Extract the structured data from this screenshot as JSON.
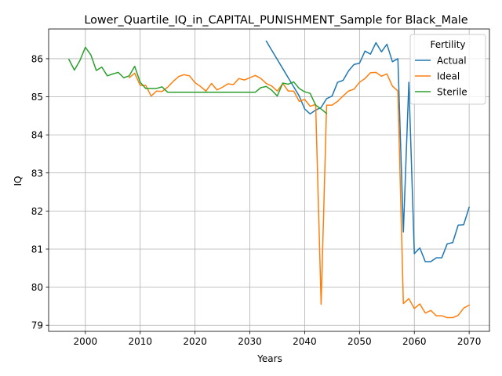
{
  "chart_data": {
    "type": "line",
    "title": "Lower_Quartile_IQ_in_CAPITAL_PUNISHMENT_Sample for Black_Male",
    "xlabel": "Years",
    "ylabel": "IQ",
    "xlim": [
      1993.3,
      2073.7
    ],
    "ylim": [
      78.84,
      86.78
    ],
    "xticks": [
      2000,
      2010,
      2020,
      2030,
      2040,
      2050,
      2060,
      2070
    ],
    "yticks": [
      79,
      80,
      81,
      82,
      83,
      84,
      85,
      86
    ],
    "grid": true,
    "legend": {
      "title": "Fertility",
      "placement": "top-right"
    },
    "series": [
      {
        "name": "Actual",
        "color": "#1f77b4",
        "x": [
          2033,
          2034,
          2035,
          2036,
          2037,
          2038,
          2039,
          2040,
          2041,
          2042,
          2043,
          2044,
          2045,
          2046,
          2047,
          2048,
          2049,
          2050,
          2051,
          2052,
          2053,
          2054,
          2055,
          2056,
          2057,
          2058,
          2059,
          2060,
          2061,
          2062,
          2063,
          2064,
          2065,
          2066,
          2067,
          2068,
          2069,
          2070
        ],
        "y": [
          86.46,
          86.22,
          85.98,
          85.74,
          85.5,
          85.26,
          85.02,
          84.68,
          84.55,
          84.65,
          84.72,
          84.95,
          85.02,
          85.38,
          85.43,
          85.68,
          85.85,
          85.88,
          86.2,
          86.12,
          86.42,
          86.18,
          86.38,
          85.92,
          86.0,
          81.45,
          85.38,
          80.88,
          81.03,
          80.67,
          80.67,
          80.77,
          80.77,
          81.14,
          81.17,
          81.63,
          81.64,
          82.1
        ]
      },
      {
        "name": "Ideal",
        "color": "#ff7f0e",
        "x": [
          2008,
          2009,
          2010,
          2011,
          2012,
          2013,
          2014,
          2015,
          2016,
          2017,
          2018,
          2019,
          2020,
          2021,
          2022,
          2023,
          2024,
          2025,
          2026,
          2027,
          2028,
          2029,
          2030,
          2031,
          2032,
          2033,
          2034,
          2035,
          2036,
          2037,
          2038,
          2039,
          2040,
          2041,
          2042,
          2043,
          2044,
          2045,
          2046,
          2047,
          2048,
          2049,
          2050,
          2051,
          2052,
          2053,
          2054,
          2055,
          2056,
          2057,
          2058,
          2059,
          2060,
          2061,
          2062,
          2063,
          2064,
          2065,
          2066,
          2067,
          2068,
          2069,
          2070
        ],
        "y": [
          85.5,
          85.62,
          85.3,
          85.3,
          85.02,
          85.15,
          85.14,
          85.25,
          85.4,
          85.53,
          85.58,
          85.55,
          85.37,
          85.27,
          85.15,
          85.35,
          85.18,
          85.25,
          85.34,
          85.32,
          85.48,
          85.44,
          85.5,
          85.56,
          85.48,
          85.35,
          85.28,
          85.15,
          85.35,
          85.15,
          85.15,
          84.88,
          84.93,
          84.75,
          84.8,
          79.55,
          84.78,
          84.78,
          84.88,
          85.02,
          85.15,
          85.2,
          85.38,
          85.48,
          85.63,
          85.64,
          85.54,
          85.6,
          85.28,
          85.15,
          79.57,
          79.7,
          79.44,
          79.56,
          79.32,
          79.39,
          79.25,
          79.25,
          79.2,
          79.2,
          79.26,
          79.45,
          79.53
        ]
      },
      {
        "name": "Sterile",
        "color": "#2ca02c",
        "x": [
          1997,
          1998,
          1999,
          2000,
          2001,
          2002,
          2003,
          2004,
          2005,
          2006,
          2007,
          2008,
          2009,
          2010,
          2011,
          2012,
          2013,
          2014,
          2015,
          2016,
          2017,
          2018,
          2019,
          2020,
          2021,
          2022,
          2023,
          2024,
          2025,
          2026,
          2027,
          2028,
          2029,
          2030,
          2031,
          2032,
          2033,
          2034,
          2035,
          2036,
          2037,
          2038,
          2039,
          2040,
          2041,
          2042,
          2043,
          2044
        ],
        "y": [
          85.98,
          85.7,
          85.95,
          86.3,
          86.1,
          85.69,
          85.78,
          85.55,
          85.6,
          85.64,
          85.5,
          85.55,
          85.8,
          85.38,
          85.22,
          85.22,
          85.22,
          85.26,
          85.12,
          85.12,
          85.12,
          85.12,
          85.12,
          85.12,
          85.12,
          85.12,
          85.12,
          85.12,
          85.12,
          85.12,
          85.12,
          85.12,
          85.12,
          85.12,
          85.12,
          85.24,
          85.27,
          85.17,
          85.02,
          85.36,
          85.33,
          85.39,
          85.22,
          85.13,
          85.09,
          84.78,
          84.68,
          84.56
        ]
      }
    ]
  }
}
